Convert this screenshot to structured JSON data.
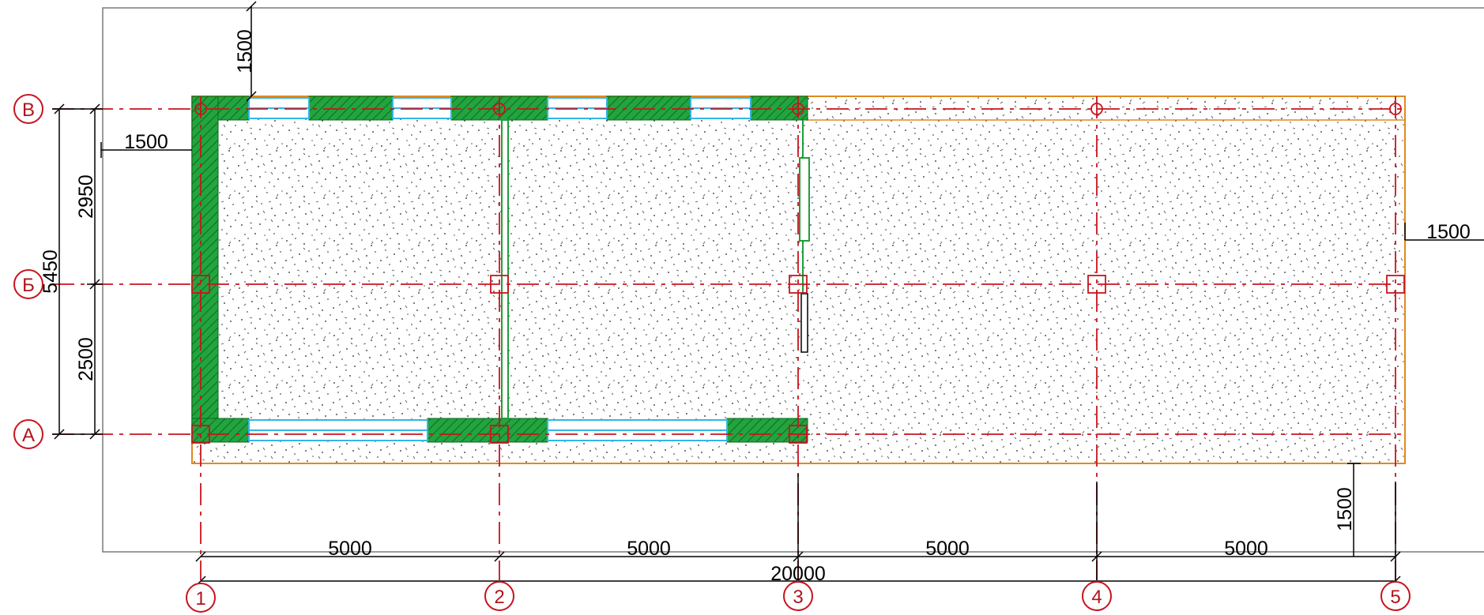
{
  "colors": {
    "axis": "#c8141e",
    "wall_fill": "#1f9e3a",
    "wall_stroke": "#0a6a1e",
    "glazing": "#33b6e6",
    "slab_outline": "#e08a1e",
    "dimension": "#000000",
    "frame": "#7a7a7a"
  },
  "axes": {
    "columns": [
      "1",
      "2",
      "3",
      "4",
      "5"
    ],
    "rows": [
      "В",
      "Б",
      "А"
    ]
  },
  "dimensions": {
    "bays": [
      "5000",
      "5000",
      "5000",
      "5000"
    ],
    "overall_width": "20000",
    "overall_depth": "5450",
    "depth_top": "2950",
    "depth_bottom": "2500",
    "offset_top": "1500",
    "offset_left": "1500",
    "offset_right": "1500",
    "offset_bottom": "1500"
  }
}
